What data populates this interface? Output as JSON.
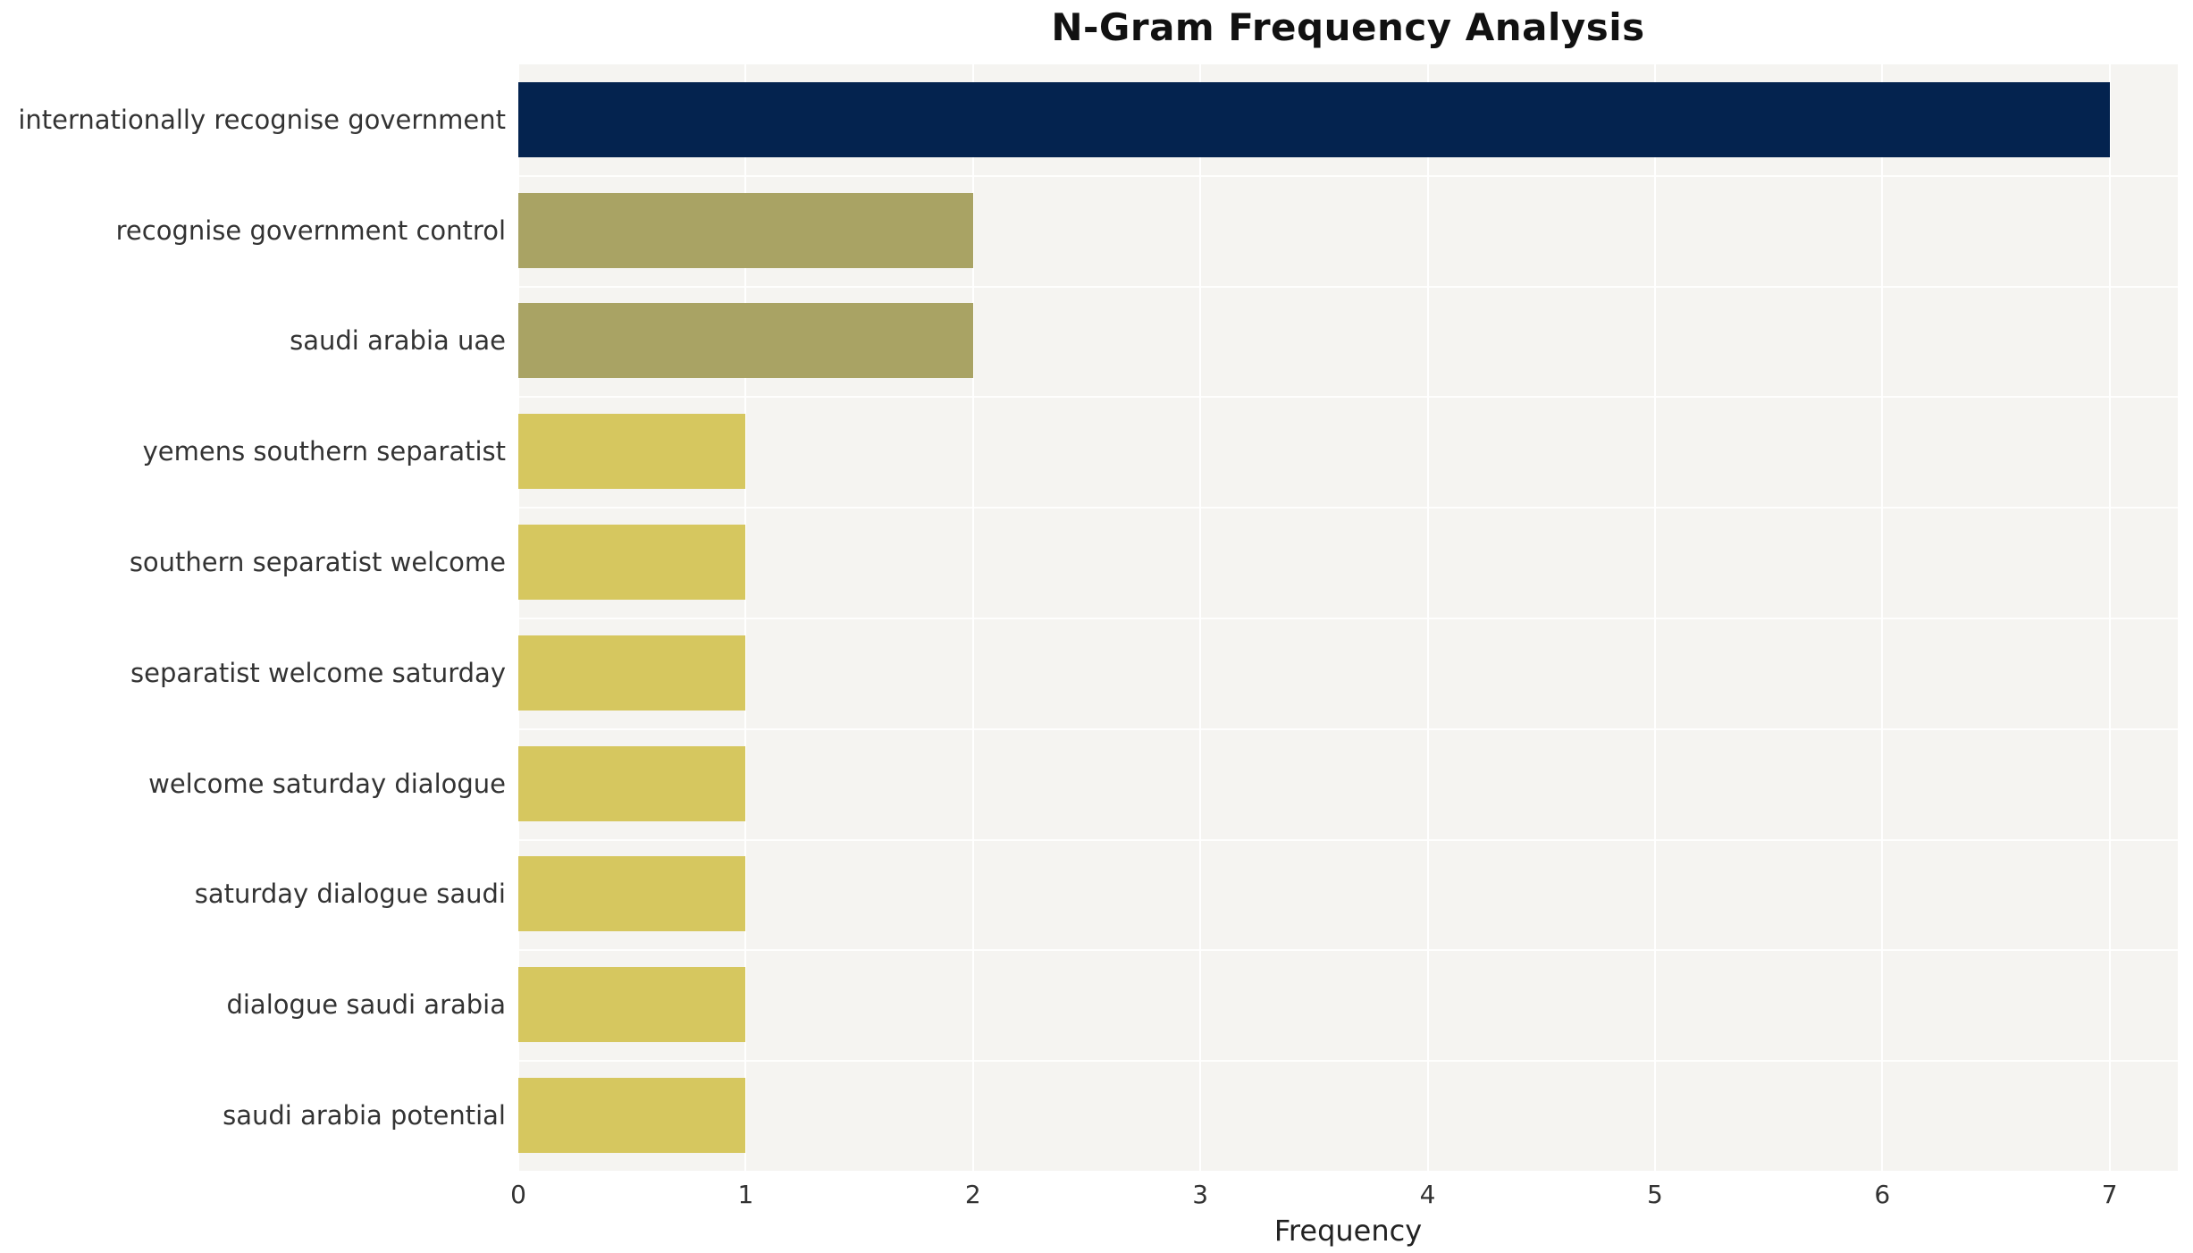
{
  "chart_data": {
    "type": "bar",
    "orientation": "horizontal",
    "title": "N-Gram Frequency Analysis",
    "xlabel": "Frequency",
    "ylabel": "",
    "xlim": [
      0,
      7.3
    ],
    "xticks": [
      0,
      1,
      2,
      3,
      4,
      5,
      6,
      7
    ],
    "grid": "vertical-white-gridlines",
    "legend_position": "none",
    "plot_background": "#f5f4f1",
    "categories": [
      "internationally recognise government",
      "recognise government control",
      "saudi arabia uae",
      "yemens southern separatist",
      "southern separatist welcome",
      "separatist welcome saturday",
      "welcome saturday dialogue",
      "saturday dialogue saudi",
      "dialogue saudi arabia",
      "saudi arabia potential"
    ],
    "values": [
      7,
      2,
      2,
      1,
      1,
      1,
      1,
      1,
      1,
      1
    ],
    "bar_colors": [
      "#04234f",
      "#a9a364",
      "#a9a364",
      "#d6c75f",
      "#d6c75f",
      "#d6c75f",
      "#d6c75f",
      "#d6c75f",
      "#d6c75f",
      "#d6c75f"
    ]
  }
}
